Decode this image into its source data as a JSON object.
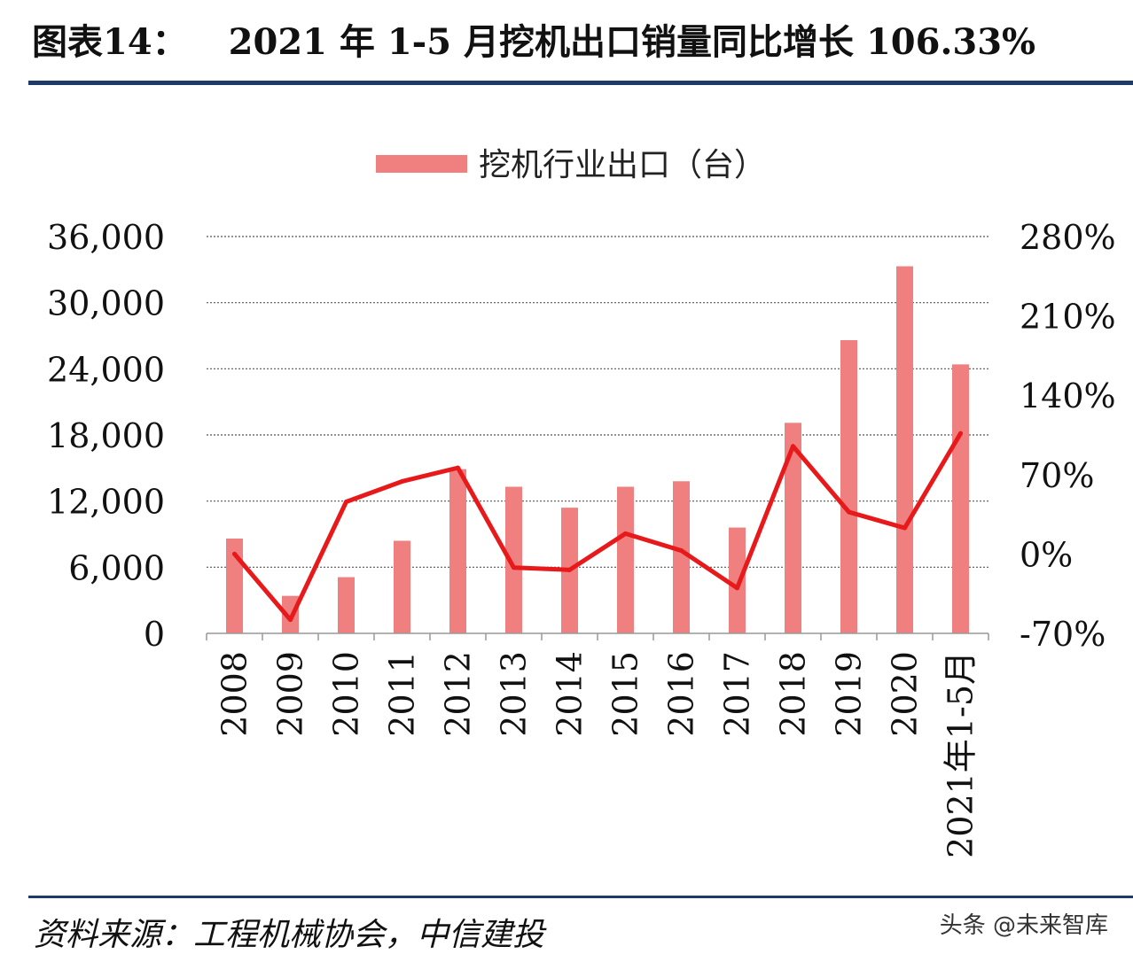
{
  "figure": {
    "number_label": "图表14：",
    "title": "2021 年 1-5 月挖机出口销量同比增长 106.33%"
  },
  "source": "资料来源：工程机械协会，中信建投",
  "watermark": "头条 @未来智库",
  "colors": {
    "bar": "#f08080",
    "line": "#e8191a",
    "rule": "#1e3a6b",
    "grid": "#555555"
  },
  "chart_data": {
    "type": "bar+line",
    "categories": [
      "2008",
      "2009",
      "2010",
      "2011",
      "2012",
      "2013",
      "2014",
      "2015",
      "2016",
      "2017",
      "2018",
      "2019",
      "2020",
      "2021年1-5月"
    ],
    "series": [
      {
        "name": "挖机行业出口（台）",
        "type": "bar",
        "axis": "left",
        "values": [
          8600,
          3400,
          5100,
          8400,
          14900,
          13300,
          11400,
          13300,
          13800,
          9600,
          19100,
          26600,
          33300,
          24400
        ]
      },
      {
        "type": "line",
        "axis": "right",
        "values": [
          0,
          -58,
          46,
          64,
          76,
          -12,
          -14,
          18,
          3,
          -30,
          95,
          37,
          23,
          106.33
        ]
      }
    ],
    "left_axis": {
      "ylim": [
        0,
        36000
      ],
      "ticks": [
        "0",
        "6,000",
        "12,000",
        "18,000",
        "24,000",
        "30,000",
        "36,000"
      ]
    },
    "right_axis": {
      "ylim": [
        -70,
        280
      ],
      "ticks": [
        "-70%",
        "0%",
        "70%",
        "140%",
        "210%",
        "280%"
      ]
    },
    "grid": true,
    "legend_position": "top"
  }
}
